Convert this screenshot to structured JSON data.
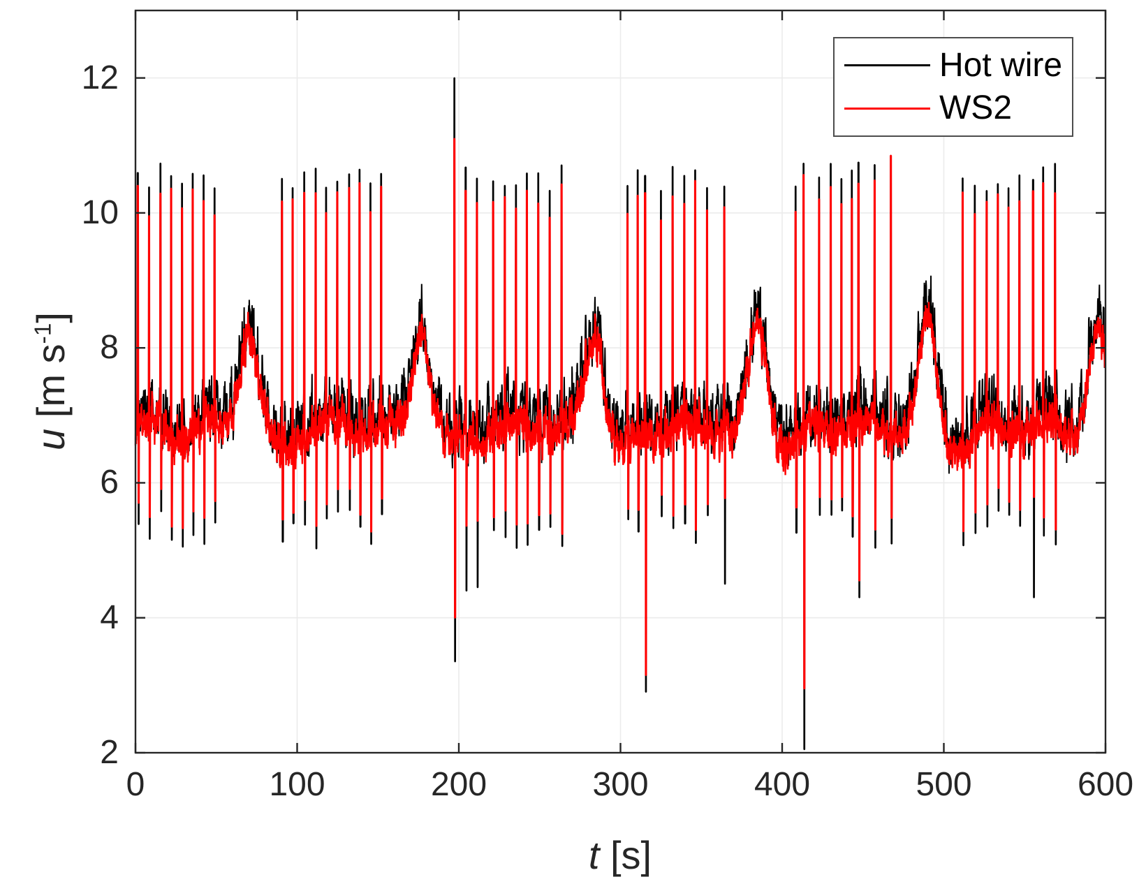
{
  "figure": {
    "background": "#ffffff",
    "axis_color": "#262626",
    "grid_color": "#ebebeb",
    "legend_border_color": "#4d4d4d",
    "text_color": "#262626"
  },
  "chart_data": {
    "type": "line",
    "title": "",
    "xlabel": {
      "prefix": "t",
      "unit": " [s]"
    },
    "ylabel": {
      "prefix": "u",
      "unit": " [m s",
      "sup": "-1",
      "close": "]"
    },
    "xlim": [
      0,
      600
    ],
    "ylim": [
      2,
      13
    ],
    "xticks": [
      0,
      100,
      200,
      300,
      400,
      500,
      600
    ],
    "xtick_labels": [
      "0",
      "100",
      "200",
      "300",
      "400",
      "500",
      "600"
    ],
    "yticks": [
      2,
      4,
      6,
      8,
      10,
      12
    ],
    "ytick_labels": [
      "2",
      "4",
      "6",
      "8",
      "10",
      "12"
    ],
    "grid": true,
    "legend": {
      "position": "northeast",
      "items": [
        {
          "label": "Hot wire",
          "color": "#000000"
        },
        {
          "label": "WS2",
          "color": "#ff0000"
        }
      ]
    },
    "series": [
      {
        "name": "Hot wire",
        "color": "#000000",
        "line_width": 2.0
      },
      {
        "name": "WS2",
        "color": "#ff0000",
        "line_width": 2.4
      }
    ],
    "signal_model": {
      "seed": 1337,
      "dt": 0.15,
      "baseline": 7.0,
      "wander": {
        "amplitude": 0.12,
        "period": 37
      },
      "noise": {
        "black_slow": 0.42,
        "black_fast": 0.26,
        "red_slow": 0.3,
        "red_fast": 0.22,
        "red_offset": -0.18,
        "correlation": 0.5,
        "lattice_step": 0.6
      },
      "humps": {
        "centers": [
          70,
          177,
          284,
          385,
          490,
          595
        ],
        "amplitude": 1.55,
        "sigma": 8.0,
        "undershoot": 0.3,
        "undershoot_delay": 16,
        "undershoot_sigma": 14
      },
      "spikes": {
        "period": 6.9,
        "jitter": 1.0,
        "start": 1.2,
        "width": 1.0,
        "peak_black": [
          10.3,
          10.75
        ],
        "peak_red_drop": [
          0.15,
          0.45
        ],
        "trough_black": [
          5.0,
          5.6
        ],
        "trough_red_rise": [
          0.15,
          0.4
        ],
        "suppressed_before_hump": 20,
        "suppressed_after_hump": 17
      },
      "extreme_events": [
        {
          "t": 197,
          "peak_black": 12.0,
          "peak_red": 11.1,
          "trough_black": 3.35,
          "trough_red": 4.0
        },
        {
          "t": 204,
          "trough_black": 4.4
        },
        {
          "t": 211,
          "trough_black": 4.45
        },
        {
          "t": 315,
          "trough_black": 2.9,
          "trough_red": 3.15
        },
        {
          "t": 364,
          "trough_black": 4.5
        },
        {
          "t": 413,
          "trough_black": 2.05,
          "trough_red": 2.95
        },
        {
          "t": 447,
          "trough_black": 4.3,
          "trough_red": 4.55
        },
        {
          "t": 467,
          "peak_black": 10.85,
          "peak_red": 10.85
        },
        {
          "t": 555,
          "trough_black": 4.3
        }
      ]
    }
  }
}
